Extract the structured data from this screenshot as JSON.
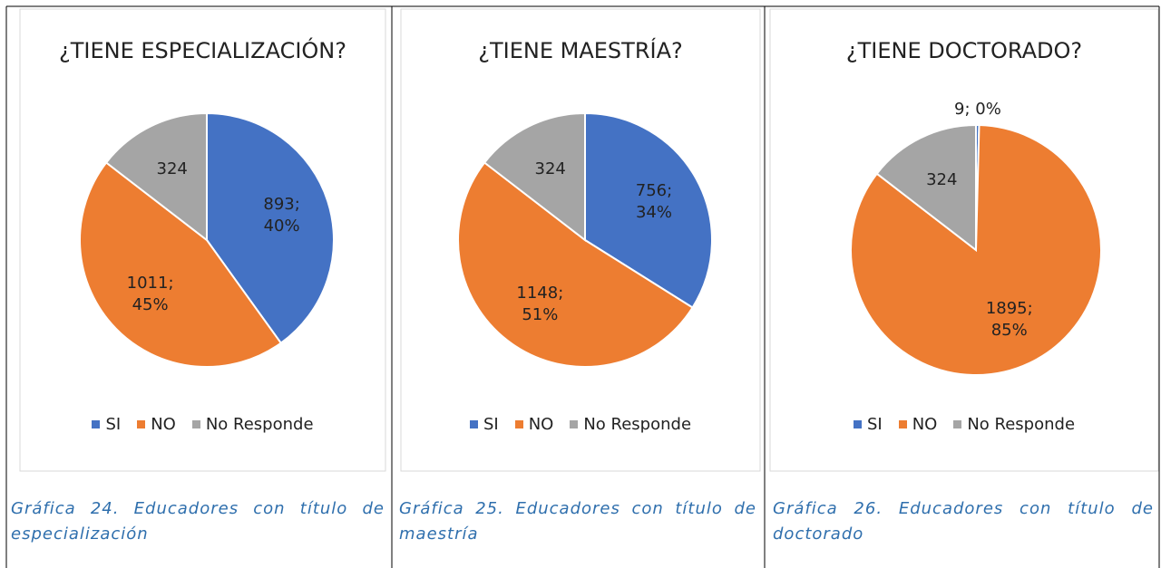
{
  "chart_data": [
    {
      "type": "pie",
      "title": "¿TIENE ESPECIALIZACIÓN?",
      "categories": [
        "SI",
        "NO",
        "No Responde"
      ],
      "values": [
        893,
        1011,
        324
      ],
      "value_labels": [
        "893; 40%",
        "1011; 45%",
        "324"
      ],
      "colors": [
        "#4472c4",
        "#ed7d31",
        "#a5a5a5"
      ],
      "legend": "bottom"
    },
    {
      "type": "pie",
      "title": "¿TIENE MAESTRÍA?",
      "categories": [
        "SI",
        "NO",
        "No Responde"
      ],
      "values": [
        756,
        1148,
        324
      ],
      "value_labels": [
        "756; 34%",
        "1148; 51%",
        "324"
      ],
      "colors": [
        "#4472c4",
        "#ed7d31",
        "#a5a5a5"
      ],
      "legend": "bottom"
    },
    {
      "type": "pie",
      "title": "¿TIENE DOCTORADO?",
      "categories": [
        "SI",
        "NO",
        "No Responde"
      ],
      "values": [
        9,
        1895,
        324
      ],
      "value_labels": [
        "9; 0%",
        "1895; 85%",
        "324"
      ],
      "colors": [
        "#4472c4",
        "#ed7d31",
        "#a5a5a5"
      ],
      "legend": "bottom"
    }
  ],
  "captions": [
    "Gráfica 24. Educadores con título de especialización",
    "Gráfica 25. Educadores con título de maestría",
    "Gráfica 26. Educadores con título de doctorado"
  ]
}
